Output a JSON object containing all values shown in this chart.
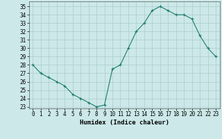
{
  "x": [
    0,
    1,
    2,
    3,
    4,
    5,
    6,
    7,
    8,
    9,
    10,
    11,
    12,
    13,
    14,
    15,
    16,
    17,
    18,
    19,
    20,
    21,
    22,
    23
  ],
  "y": [
    28,
    27,
    26.5,
    26,
    25.5,
    24.5,
    24,
    23.5,
    23,
    23.2,
    27.5,
    28,
    30,
    32,
    33,
    34.5,
    35,
    34.5,
    34,
    34,
    33.5,
    31.5,
    30,
    29
  ],
  "line_color": "#1a7a6e",
  "marker": "+",
  "bg_color": "#cce8e8",
  "grid_color": "#aacccc",
  "xlabel": "Humidex (Indice chaleur)",
  "xlim": [
    -0.5,
    23.5
  ],
  "ylim": [
    22.8,
    35.6
  ],
  "yticks": [
    23,
    24,
    25,
    26,
    27,
    28,
    29,
    30,
    31,
    32,
    33,
    34,
    35
  ],
  "xticks": [
    0,
    1,
    2,
    3,
    4,
    5,
    6,
    7,
    8,
    9,
    10,
    11,
    12,
    13,
    14,
    15,
    16,
    17,
    18,
    19,
    20,
    21,
    22,
    23
  ],
  "tick_fontsize": 5.5,
  "xlabel_fontsize": 6.5,
  "linewidth": 0.8,
  "markersize": 2.5,
  "markeredgewidth": 0.8
}
